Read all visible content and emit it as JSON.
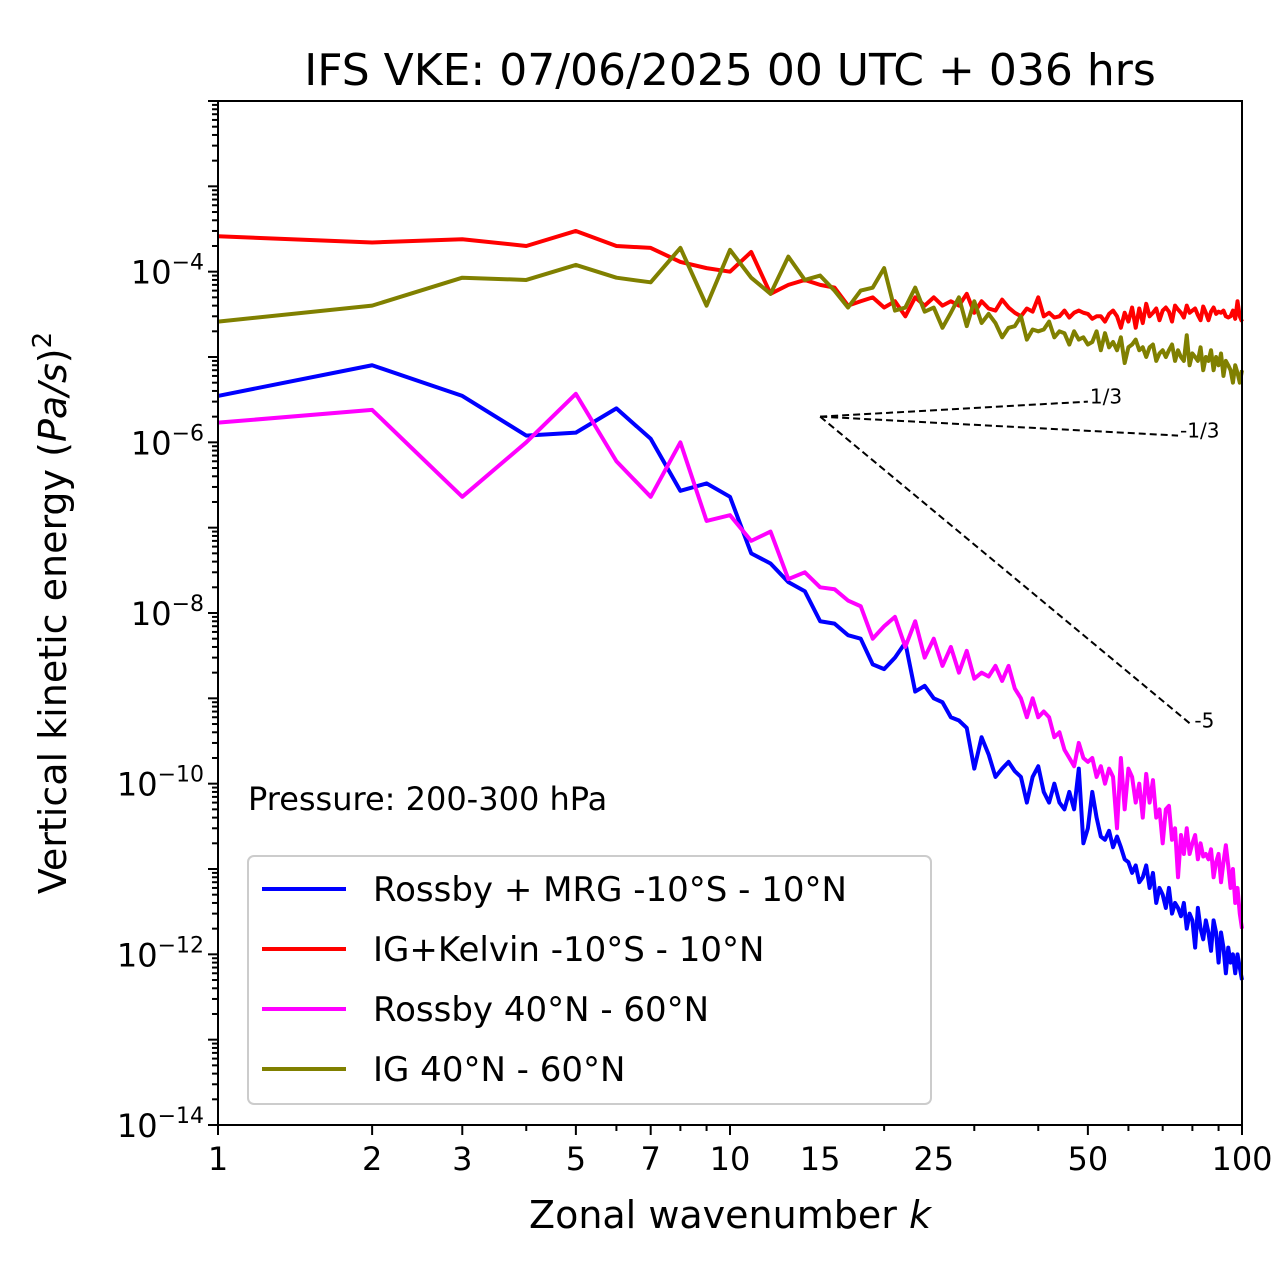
{
  "chart_data": {
    "type": "line",
    "title": "IFS VKE: 07/06/2025 00 UTC + 036 hrs",
    "xlabel": "Zonal wavenumber",
    "xlabel_var": "k",
    "ylabel_prefix": "Vertical kinetic energy (",
    "ylabel_var": "Pa/s",
    "ylabel_suffix": ")",
    "ylabel_exp": "2",
    "xscale": "log",
    "yscale": "log",
    "xlim": [
      1,
      100
    ],
    "ylim": [
      1e-14,
      0.01
    ],
    "x_ticks": [
      1,
      2,
      3,
      5,
      7,
      10,
      15,
      25,
      50,
      100
    ],
    "x_tick_labels": [
      "1",
      "2",
      "3",
      "5",
      "7",
      "10",
      "15",
      "25",
      "50",
      "100"
    ],
    "y_ticks": [
      1e-14,
      1e-12,
      1e-10,
      1e-08,
      1e-06,
      0.0001
    ],
    "y_tick_base": "10",
    "y_tick_exps": [
      "−14",
      "−12",
      "−10",
      "−8",
      "−6",
      "−4"
    ],
    "annotation": "Pressure: 200-300 hPa",
    "legend_position": "lower-left",
    "grid": false,
    "reference_slopes": {
      "origin": [
        15,
        2e-06
      ],
      "lines": [
        {
          "label": "1/3",
          "end": [
            50,
            3e-06
          ]
        },
        {
          "label": "-1/3",
          "end": [
            75,
            1.2e-06
          ]
        },
        {
          "label": "-5",
          "end": [
            80,
            4.8e-10
          ]
        }
      ]
    },
    "series": [
      {
        "name": "Rossby + MRG -10°S - 10°N",
        "color": "#0000ff",
        "x": [
          1,
          2,
          3,
          4,
          5,
          6,
          7,
          8,
          9,
          10,
          11,
          12,
          13,
          14,
          15,
          16,
          17,
          18,
          19,
          20,
          21,
          22,
          23,
          24,
          25,
          26,
          27,
          28,
          29,
          30,
          31,
          32,
          33,
          34,
          35,
          36,
          37,
          38,
          39,
          40,
          41,
          42,
          43,
          44,
          45,
          46,
          47,
          48,
          49,
          50,
          51,
          52,
          53,
          54,
          55,
          56,
          57,
          58,
          59,
          60,
          61,
          62,
          63,
          64,
          65,
          66,
          67,
          68,
          69,
          70,
          71,
          72,
          73,
          74,
          75,
          76,
          77,
          78,
          79,
          80,
          81,
          82,
          83,
          84,
          85,
          86,
          87,
          88,
          89,
          90,
          91,
          92,
          93,
          94,
          95,
          96,
          97,
          98,
          99,
          100
        ],
        "y": [
          3.5e-06,
          8e-06,
          3.5e-06,
          1.2e-06,
          1.3e-06,
          2.5e-06,
          1.1e-06,
          2.7e-07,
          3.3e-07,
          2.3e-07,
          5e-08,
          3.8e-08,
          2.3e-08,
          1.8e-08,
          8e-09,
          7.5e-09,
          5.5e-09,
          5e-09,
          2.5e-09,
          2.2e-09,
          3e-09,
          4.5e-09,
          1.2e-09,
          1.4e-09,
          1e-09,
          9e-10,
          6e-10,
          5.5e-10,
          4.5e-10,
          1.5e-10,
          3.5e-10,
          2.2e-10,
          1.2e-10,
          1.5e-10,
          1.8e-10,
          1.4e-10,
          1.2e-10,
          6e-11,
          1.2e-10,
          1.6e-10,
          8e-11,
          6e-11,
          1e-10,
          6e-11,
          5e-11,
          8e-11,
          5e-11,
          1.5e-10,
          2e-11,
          3e-11,
          8e-11,
          4e-11,
          2.4e-11,
          2.2e-11,
          2.8e-11,
          1.8e-11,
          2.4e-11,
          1.8e-11,
          1.3e-11,
          1.2e-11,
          9e-12,
          1.1e-11,
          7e-12,
          8e-12,
          1.1e-11,
          6e-12,
          9e-12,
          4e-12,
          6e-12,
          5e-12,
          3.5e-12,
          6e-12,
          3e-12,
          4e-12,
          3.5e-12,
          2.8e-12,
          4e-12,
          2e-12,
          3e-12,
          2.5e-12,
          1.2e-12,
          3.5e-12,
          2e-12,
          1.5e-12,
          2.5e-12,
          1.8e-12,
          1.1e-12,
          2.5e-12,
          1.8e-12,
          8e-13,
          1.8e-12,
          1.2e-12,
          6e-13,
          1.2e-12,
          8e-13,
          1e-12,
          6e-13,
          1e-12,
          7e-13,
          5e-13
        ]
      },
      {
        "name": "IG+Kelvin -10°S - 10°N",
        "color": "#ff0000",
        "x": [
          1,
          2,
          3,
          4,
          5,
          6,
          7,
          8,
          9,
          10,
          11,
          12,
          13,
          14,
          15,
          16,
          17,
          18,
          19,
          20,
          21,
          22,
          23,
          24,
          25,
          26,
          27,
          28,
          29,
          30,
          31,
          32,
          33,
          34,
          35,
          36,
          37,
          38,
          39,
          40,
          41,
          42,
          43,
          44,
          45,
          46,
          47,
          48,
          49,
          50,
          51,
          52,
          53,
          54,
          55,
          56,
          57,
          58,
          59,
          60,
          61,
          62,
          63,
          64,
          65,
          66,
          67,
          68,
          69,
          70,
          71,
          72,
          73,
          74,
          75,
          76,
          77,
          78,
          79,
          80,
          81,
          82,
          83,
          84,
          85,
          86,
          87,
          88,
          89,
          90,
          91,
          92,
          93,
          94,
          95,
          96,
          97,
          98,
          99,
          100
        ],
        "y": [
          0.00026,
          0.00022,
          0.00024,
          0.0002,
          0.0003,
          0.0002,
          0.00019,
          0.00013,
          0.00011,
          0.0001,
          0.00017,
          5.5e-05,
          7e-05,
          8e-05,
          7e-05,
          6.5e-05,
          4e-05,
          4.5e-05,
          5e-05,
          3.8e-05,
          4.5e-05,
          3e-05,
          5e-05,
          4e-05,
          5e-05,
          4e-05,
          4.5e-05,
          4e-05,
          5.5e-05,
          3.3e-05,
          4.5e-05,
          3.7e-05,
          3.5e-05,
          4.7e-05,
          3.8e-05,
          3.3e-05,
          3e-05,
          3.7e-05,
          3.4e-05,
          5e-05,
          3e-05,
          3.3e-05,
          2.9e-05,
          3e-05,
          3.5e-05,
          2.9e-05,
          3.3e-05,
          3.5e-05,
          3.3e-05,
          3.2e-05,
          2.8e-05,
          3e-05,
          3e-05,
          2.6e-05,
          3.2e-05,
          3.5e-05,
          3e-05,
          2.2e-05,
          3.3e-05,
          2.6e-05,
          3.8e-05,
          2.2e-05,
          3.7e-05,
          2.5e-05,
          4.2e-05,
          3e-05,
          3.3e-05,
          3.7e-05,
          2.7e-05,
          3.5e-05,
          3.8e-05,
          3.4e-05,
          2.6e-05,
          4e-05,
          3.6e-05,
          3.3e-05,
          2.9e-05,
          4e-05,
          3.3e-05,
          3.5e-05,
          3.7e-05,
          3.1e-05,
          2.7e-05,
          3.9e-05,
          3.3e-05,
          2.7e-05,
          3.4e-05,
          3.8e-05,
          3.2e-05,
          3.4e-05,
          3.3e-05,
          3.5e-05,
          3e-05,
          2.9e-05,
          3e-05,
          3.5e-05,
          2.8e-05,
          4.5e-05,
          3e-05,
          2.6e-05
        ]
      },
      {
        "name": "Rossby 40°N - 60°N",
        "color": "#ff00ff",
        "x": [
          1,
          2,
          3,
          4,
          5,
          6,
          7,
          8,
          9,
          10,
          11,
          12,
          13,
          14,
          15,
          16,
          17,
          18,
          19,
          20,
          21,
          22,
          23,
          24,
          25,
          26,
          27,
          28,
          29,
          30,
          31,
          32,
          33,
          34,
          35,
          36,
          37,
          38,
          39,
          40,
          41,
          42,
          43,
          44,
          45,
          46,
          47,
          48,
          49,
          50,
          51,
          52,
          53,
          54,
          55,
          56,
          57,
          58,
          59,
          60,
          61,
          62,
          63,
          64,
          65,
          66,
          67,
          68,
          69,
          70,
          71,
          72,
          73,
          74,
          75,
          76,
          77,
          78,
          79,
          80,
          81,
          82,
          83,
          84,
          85,
          86,
          87,
          88,
          89,
          90,
          91,
          92,
          93,
          94,
          95,
          96,
          97,
          98,
          99,
          100
        ],
        "y": [
          1.7e-06,
          2.4e-06,
          2.3e-07,
          1e-06,
          3.7e-06,
          6e-07,
          2.3e-07,
          1e-06,
          1.2e-07,
          1.4e-07,
          7e-08,
          9e-08,
          2.5e-08,
          3e-08,
          2e-08,
          1.9e-08,
          1.4e-08,
          1.2e-08,
          5e-09,
          7e-09,
          9e-09,
          4e-09,
          8e-09,
          3e-09,
          5e-09,
          2.4e-09,
          4e-09,
          2e-09,
          3.6e-09,
          1.7e-09,
          2e-09,
          1.8e-09,
          2.4e-09,
          1.6e-09,
          2.4e-09,
          1.3e-09,
          1e-09,
          6e-10,
          1e-09,
          6e-10,
          7e-10,
          6e-10,
          3.5e-10,
          4e-10,
          2.5e-10,
          2e-10,
          1.6e-10,
          3e-10,
          2e-10,
          1.8e-10,
          2e-10,
          1.2e-10,
          1.6e-10,
          1e-10,
          1.5e-10,
          1.2e-10,
          3e-11,
          2e-10,
          5e-11,
          1.5e-10,
          1.2e-10,
          6e-11,
          1e-10,
          4e-11,
          1.3e-10,
          6e-11,
          1.1e-10,
          4e-11,
          5e-11,
          2e-11,
          5e-11,
          5.5e-11,
          2.2e-11,
          3e-11,
          8e-12,
          2.5e-11,
          1.5e-11,
          3e-11,
          1.5e-11,
          2e-11,
          2.5e-11,
          1.3e-11,
          2e-11,
          1.4e-11,
          1.5e-11,
          1.3e-11,
          1.7e-11,
          8e-12,
          1.2e-11,
          1.5e-11,
          7e-12,
          1.2e-11,
          1.9e-11,
          1.1e-11,
          6e-12,
          1e-11,
          4e-12,
          6e-12,
          3e-12,
          2e-12
        ]
      },
      {
        "name": "IG 40°N - 60°N",
        "color": "#808000",
        "x": [
          1,
          2,
          3,
          4,
          5,
          6,
          7,
          8,
          9,
          10,
          11,
          12,
          13,
          14,
          15,
          16,
          17,
          18,
          19,
          20,
          21,
          22,
          23,
          24,
          25,
          26,
          27,
          28,
          29,
          30,
          31,
          32,
          33,
          34,
          35,
          36,
          37,
          38,
          39,
          40,
          41,
          42,
          43,
          44,
          45,
          46,
          47,
          48,
          49,
          50,
          51,
          52,
          53,
          54,
          55,
          56,
          57,
          58,
          59,
          60,
          61,
          62,
          63,
          64,
          65,
          66,
          67,
          68,
          69,
          70,
          71,
          72,
          73,
          74,
          75,
          76,
          77,
          78,
          79,
          80,
          81,
          82,
          83,
          84,
          85,
          86,
          87,
          88,
          89,
          90,
          91,
          92,
          93,
          94,
          95,
          96,
          97,
          98,
          99,
          100
        ],
        "y": [
          2.6e-05,
          4e-05,
          8.5e-05,
          8e-05,
          0.00012,
          8.5e-05,
          7.5e-05,
          0.00019,
          4e-05,
          0.00018,
          8.5e-05,
          5.5e-05,
          0.00015,
          8e-05,
          9e-05,
          6e-05,
          3.8e-05,
          6e-05,
          6.5e-05,
          0.00011,
          3.5e-05,
          3.8e-05,
          6.5e-05,
          3.4e-05,
          3.8e-05,
          2.2e-05,
          3.3e-05,
          5e-05,
          2.3e-05,
          4.5e-05,
          2.5e-05,
          3.2e-05,
          2.5e-05,
          1.7e-05,
          2.2e-05,
          2.3e-05,
          3e-05,
          1.6e-05,
          2.1e-05,
          2e-05,
          2.1e-05,
          2.6e-05,
          1.7e-05,
          2e-05,
          1.9e-05,
          1.4e-05,
          2e-05,
          1.6e-05,
          1.7e-05,
          1.4e-05,
          1.5e-05,
          2e-05,
          1.2e-05,
          1.9e-05,
          1.3e-05,
          1.5e-05,
          1.2e-05,
          1.7e-05,
          8.5e-06,
          1.3e-05,
          1.4e-05,
          1.6e-05,
          1.2e-05,
          1.3e-05,
          1e-05,
          1.3e-05,
          1.4e-05,
          9e-06,
          1.1e-05,
          1.2e-05,
          1e-05,
          1.2e-05,
          1.4e-05,
          9e-06,
          1.2e-05,
          1e-05,
          9e-06,
          1.8e-05,
          8e-06,
          1.1e-05,
          1e-05,
          9e-06,
          1.3e-05,
          7e-06,
          1e-05,
          9e-06,
          1.2e-05,
          7e-06,
          1e-05,
          8e-06,
          1.1e-05,
          6e-06,
          9e-06,
          8e-06,
          7e-06,
          5e-06,
          8e-06,
          6.5e-06,
          5e-06,
          7e-06
        ]
      }
    ]
  }
}
